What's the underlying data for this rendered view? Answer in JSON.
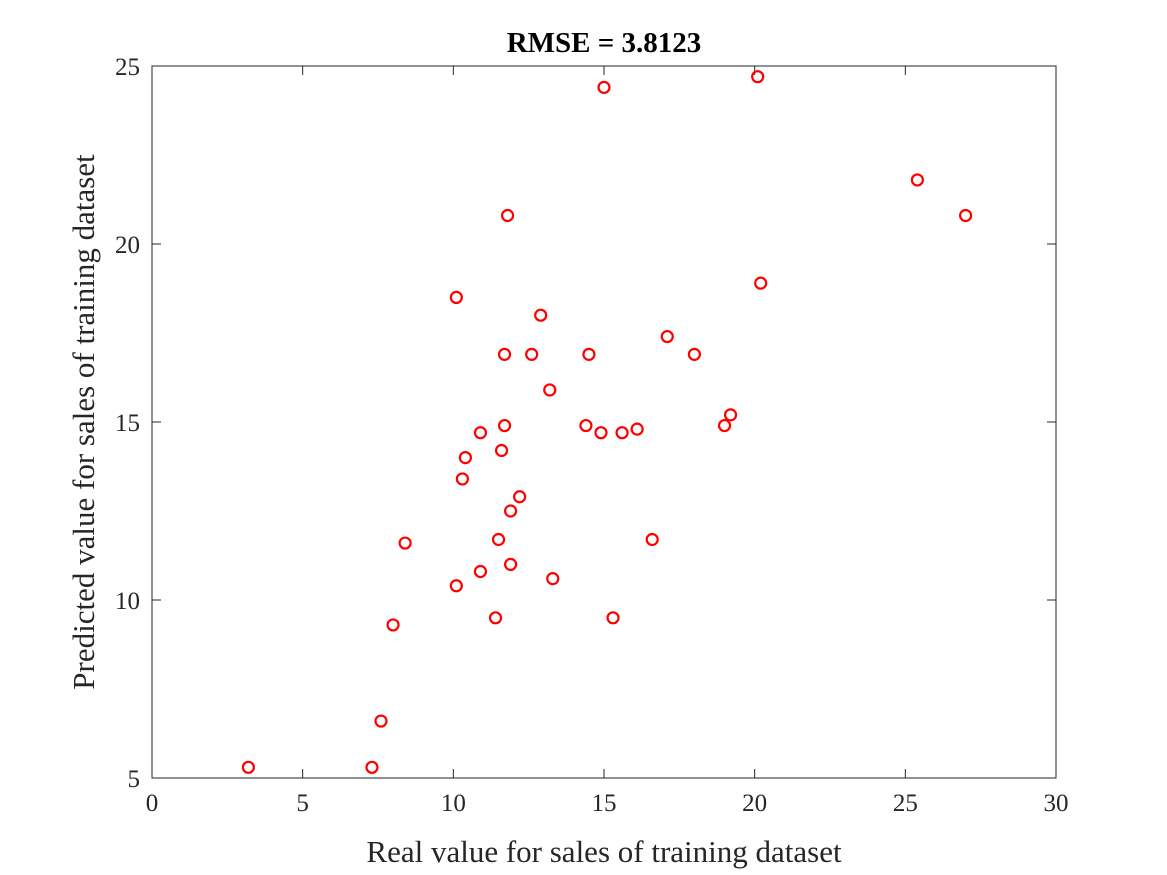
{
  "chart_data": {
    "type": "scatter",
    "title": "RMSE = 3.8123",
    "xlabel": "Real value for sales of training dataset",
    "ylabel": "Predicted value for sales of training dataset",
    "xlim": [
      0,
      30
    ],
    "ylim": [
      5,
      25
    ],
    "xticks": [
      0,
      5,
      10,
      15,
      20,
      25,
      30
    ],
    "yticks": [
      5,
      10,
      15,
      20,
      25
    ],
    "grid": false,
    "marker": "circle-open",
    "color": "#ff0000",
    "points": [
      [
        3.2,
        5.3
      ],
      [
        7.3,
        5.3
      ],
      [
        7.6,
        6.6
      ],
      [
        8.0,
        9.3
      ],
      [
        8.4,
        11.6
      ],
      [
        10.1,
        10.4
      ],
      [
        10.1,
        18.5
      ],
      [
        10.3,
        13.4
      ],
      [
        10.4,
        14.0
      ],
      [
        10.9,
        14.7
      ],
      [
        10.9,
        10.8
      ],
      [
        11.4,
        9.5
      ],
      [
        11.5,
        11.7
      ],
      [
        11.6,
        14.2
      ],
      [
        11.7,
        16.9
      ],
      [
        11.7,
        14.9
      ],
      [
        11.8,
        20.8
      ],
      [
        11.9,
        12.5
      ],
      [
        11.9,
        11.0
      ],
      [
        12.2,
        12.9
      ],
      [
        12.6,
        16.9
      ],
      [
        12.9,
        18.0
      ],
      [
        13.2,
        15.9
      ],
      [
        13.3,
        10.6
      ],
      [
        14.4,
        14.9
      ],
      [
        14.5,
        16.9
      ],
      [
        14.9,
        14.7
      ],
      [
        15.0,
        24.4
      ],
      [
        15.3,
        9.5
      ],
      [
        15.6,
        14.7
      ],
      [
        16.1,
        14.8
      ],
      [
        16.6,
        11.7
      ],
      [
        17.1,
        17.4
      ],
      [
        18.0,
        16.9
      ],
      [
        19.0,
        14.9
      ],
      [
        19.2,
        15.2
      ],
      [
        20.1,
        24.7
      ],
      [
        20.2,
        18.9
      ],
      [
        25.4,
        21.8
      ],
      [
        27.0,
        20.8
      ]
    ]
  }
}
